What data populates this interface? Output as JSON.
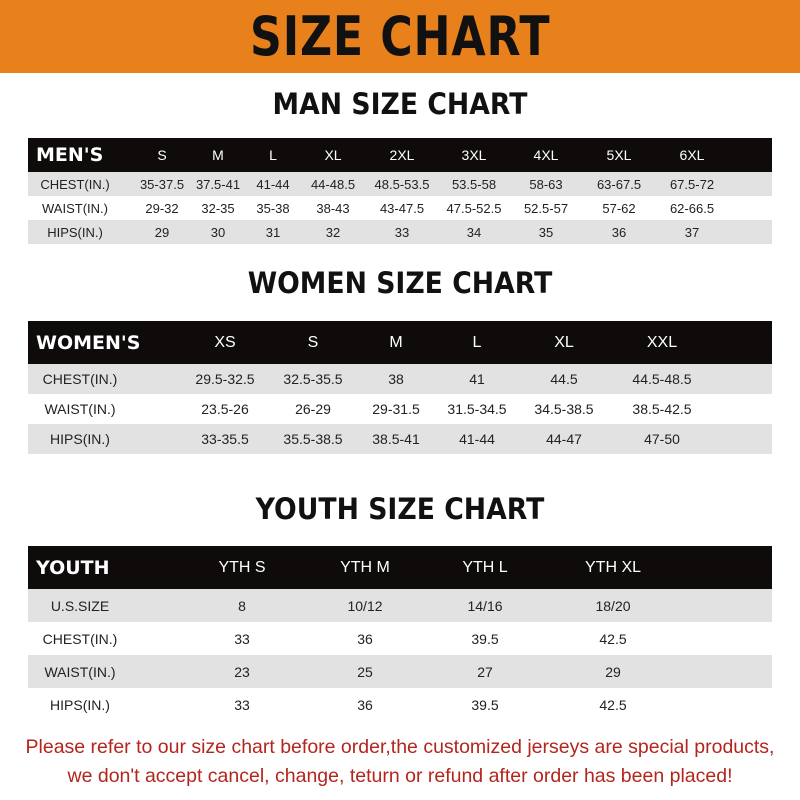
{
  "banner_title": "SIZE CHART",
  "men": {
    "title": "MAN SIZE CHART",
    "header": [
      "MEN'S",
      "S",
      "M",
      "L",
      "XL",
      "2XL",
      "3XL",
      "4XL",
      "5XL",
      "6XL"
    ],
    "rows": [
      [
        "CHEST(IN.)",
        "35-37.5",
        "37.5-41",
        "41-44",
        "44-48.5",
        "48.5-53.5",
        "53.5-58",
        "58-63",
        "63-67.5",
        "67.5-72"
      ],
      [
        "WAIST(IN.)",
        "29-32",
        "32-35",
        "35-38",
        "38-43",
        "43-47.5",
        "47.5-52.5",
        "52.5-57",
        "57-62",
        "62-66.5"
      ],
      [
        "HIPS(IN.)",
        "29",
        "30",
        "31",
        "32",
        "33",
        "34",
        "35",
        "36",
        "37"
      ]
    ]
  },
  "women": {
    "title": "WOMEN SIZE CHART",
    "header": [
      "WOMEN'S",
      "XS",
      "S",
      "M",
      "L",
      "XL",
      "XXL"
    ],
    "rows": [
      [
        "CHEST(IN.)",
        "29.5-32.5",
        "32.5-35.5",
        "38",
        "41",
        "44.5",
        "44.5-48.5"
      ],
      [
        "WAIST(IN.)",
        "23.5-26",
        "26-29",
        "29-31.5",
        "31.5-34.5",
        "34.5-38.5",
        "38.5-42.5"
      ],
      [
        "HIPS(IN.)",
        "33-35.5",
        "35.5-38.5",
        "38.5-41",
        "41-44",
        "44-47",
        "47-50"
      ]
    ]
  },
  "youth": {
    "title": "YOUTH SIZE CHART",
    "header": [
      "YOUTH",
      "YTH S",
      "YTH M",
      "YTH L",
      "YTH XL"
    ],
    "rows": [
      [
        "U.S.SIZE",
        "8",
        "10/12",
        "14/16",
        "18/20"
      ],
      [
        "CHEST(IN.)",
        "33",
        "36",
        "39.5",
        "42.5"
      ],
      [
        "WAIST(IN.)",
        "23",
        "25",
        "27",
        "29"
      ],
      [
        "HIPS(IN.)",
        "33",
        "36",
        "39.5",
        "42.5"
      ]
    ]
  },
  "notice": [
    "Please refer to our size chart before order,the customized jerseys are special products,",
    "we don't accept cancel, change, teturn or refund after order has been placed!"
  ],
  "colors": {
    "banner": "#E8811C",
    "header_row": "#0f0b0b",
    "stripe": "#e2e2e2",
    "notice": "#B3261E"
  }
}
